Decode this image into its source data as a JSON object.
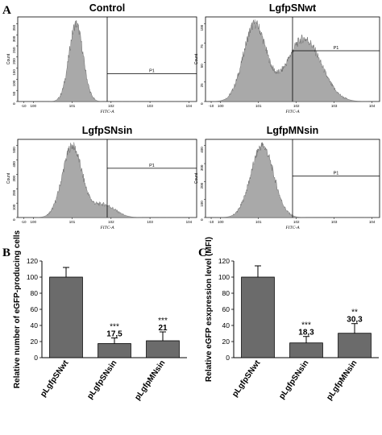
{
  "figure": {
    "panel_labels": [
      "A",
      "B",
      "C"
    ]
  },
  "colors": {
    "fill": "#a9a9a9",
    "bar": "#6b6b6b",
    "stroke": "#000000"
  },
  "chart_data": [
    {
      "panel": "A",
      "type": "area",
      "title": "Control",
      "ylabel": "Count",
      "xlabel": "FITC-A",
      "gate_label": "P1",
      "yticks": [
        "0",
        "50",
        "100",
        "150",
        "200",
        "250",
        "300",
        "350"
      ],
      "xticks": [
        "-10",
        "10^0",
        "10^1",
        "10^2",
        "10^3",
        "10^4"
      ],
      "peak_decade": 1.1,
      "spread": 0.18,
      "gate_start_decade": 1.9
    },
    {
      "panel": "A",
      "type": "area",
      "title": "LgfpSNwt",
      "ylabel": "Count",
      "xlabel": "FITC-A",
      "gate_label": "P1",
      "yticks": [
        "0",
        "25",
        "50",
        "75",
        "100"
      ],
      "xticks": [
        "-10",
        "10^0",
        "10^1",
        "10^2",
        "10^3",
        "10^4"
      ],
      "peaks": [
        [
          0.9,
          0.3
        ],
        [
          2.2,
          0.45
        ]
      ],
      "gate_start_decade": 1.9
    },
    {
      "panel": "A",
      "type": "area",
      "title": "LgfpSNsin",
      "ylabel": "Count",
      "xlabel": "FITC-A",
      "gate_label": "P1",
      "yticks": [
        "0",
        "100",
        "200",
        "300",
        "400",
        "500"
      ],
      "xticks": [
        "-10",
        "10^0",
        "10^1",
        "10^2",
        "10^3",
        "10^4"
      ],
      "peaks": [
        [
          1.0,
          0.25
        ],
        [
          1.8,
          0.3
        ]
      ],
      "gate_start_decade": 1.9
    },
    {
      "panel": "A",
      "type": "area",
      "title": "LgfpMNsin",
      "ylabel": "Count",
      "xlabel": "FITC-A",
      "gate_label": "P1",
      "yticks": [
        "0",
        "100",
        "200",
        "300",
        "400"
      ],
      "xticks": [
        "-10",
        "10^0",
        "10^1",
        "10^2",
        "10^3",
        "10^4"
      ],
      "peaks": [
        [
          1.1,
          0.3
        ]
      ],
      "gate_start_decade": 1.9
    },
    {
      "panel": "B",
      "type": "bar",
      "ylabel": "Relative  number of eGFP-producing cells",
      "categories": [
        "pLgfpSNwt",
        "pLgfpSNsin",
        "pLgfpMNsin"
      ],
      "values": [
        100,
        17.5,
        21
      ],
      "errors": [
        12,
        7,
        11
      ],
      "significance": [
        "",
        "***",
        "***"
      ],
      "value_labels": [
        "",
        "17,5",
        "21"
      ],
      "ylim": [
        0,
        120
      ],
      "yticks": [
        0,
        20,
        40,
        60,
        80,
        100,
        120
      ]
    },
    {
      "panel": "C",
      "type": "bar",
      "ylabel": "Relative eGFP esxpression level (MFI)",
      "categories": [
        "pLgfpSNwt",
        "pLgfpSNsin",
        "pLgfpMNsin"
      ],
      "values": [
        100,
        18.3,
        30.3
      ],
      "errors": [
        14,
        8,
        12
      ],
      "significance": [
        "",
        "***",
        "**"
      ],
      "value_labels": [
        "",
        "18,3",
        "30,3"
      ],
      "ylim": [
        0,
        120
      ],
      "yticks": [
        0,
        20,
        40,
        60,
        80,
        100,
        120
      ]
    }
  ]
}
